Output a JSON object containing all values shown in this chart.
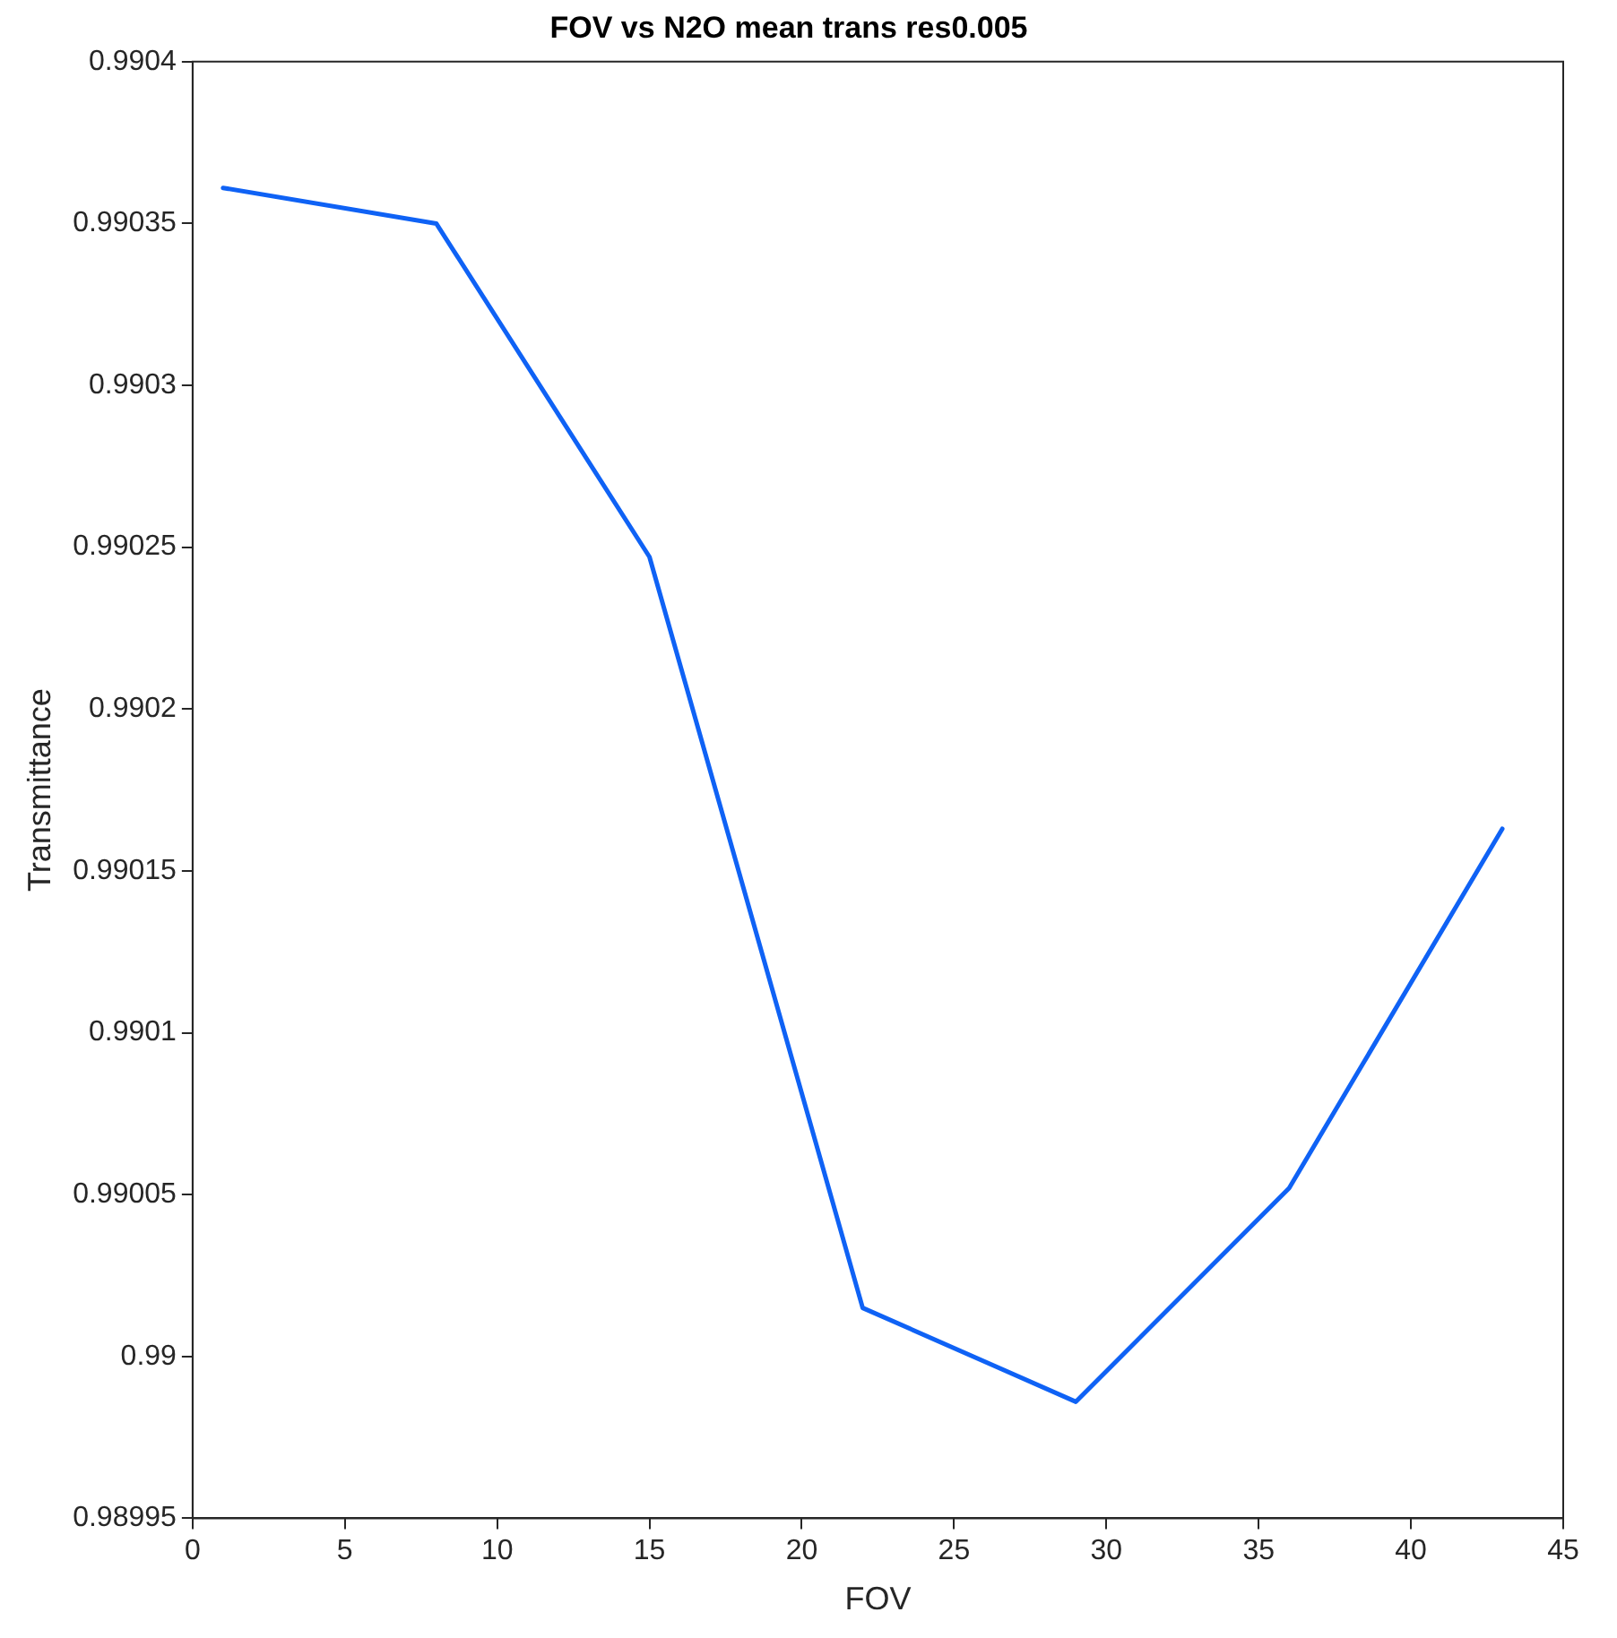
{
  "chart_data": {
    "type": "line",
    "title": "FOV vs N2O mean trans res0.005",
    "xlabel": "FOV",
    "ylabel": "Transmittance",
    "x": [
      1,
      8,
      15,
      22,
      29,
      36,
      43
    ],
    "series": [
      {
        "color": "#0f62f5",
        "values": [
          0.990361,
          0.99035,
          0.990247,
          0.990015,
          0.989986,
          0.990052,
          0.990163
        ]
      }
    ],
    "xlim": [
      0,
      45
    ],
    "xticks": [
      0,
      5,
      10,
      15,
      20,
      25,
      30,
      35,
      40,
      45
    ],
    "ylim": [
      0.98995,
      0.9904
    ],
    "yticks": [
      0.98995,
      0.99,
      0.99005,
      0.9901,
      0.99015,
      0.9902,
      0.99025,
      0.9903,
      0.99035,
      0.9904
    ],
    "grid": false,
    "legend": false,
    "marker": "none",
    "line_style": "solid"
  }
}
